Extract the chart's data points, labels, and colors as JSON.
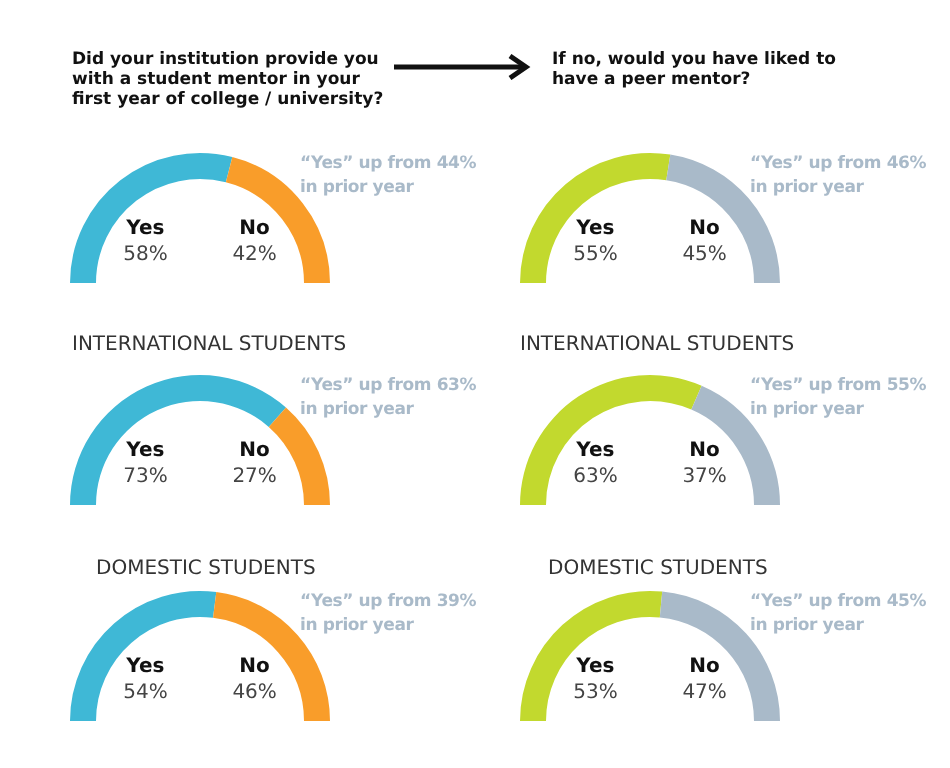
{
  "chart_data": [
    {
      "type": "donut",
      "title": "Did your institution provide you with a student mentor in your first year of college / university?",
      "categories": [
        "Yes",
        "No"
      ],
      "values": [
        58,
        42
      ],
      "value_labels": [
        "58%",
        "42%"
      ],
      "colors": [
        "#3fb8d6",
        "#f99d2a"
      ],
      "annotations": [
        "“Yes” up from 44% in prior year"
      ]
    },
    {
      "type": "donut",
      "title": "If no, would you have liked to have a peer mentor?",
      "categories": [
        "Yes",
        "No"
      ],
      "values": [
        55,
        45
      ],
      "value_labels": [
        "55%",
        "45%"
      ],
      "colors": [
        "#c2d92e",
        "#a9bac9"
      ],
      "annotations": [
        "“Yes” up from 46% in prior year"
      ]
    },
    {
      "type": "donut",
      "title": "INTERNATIONAL STUDENTS",
      "categories": [
        "Yes",
        "No"
      ],
      "values": [
        73,
        27
      ],
      "value_labels": [
        "73%",
        "27%"
      ],
      "colors": [
        "#3fb8d6",
        "#f99d2a"
      ],
      "annotations": [
        "“Yes” up from 63% in prior year"
      ]
    },
    {
      "type": "donut",
      "title": "INTERNATIONAL STUDENTS",
      "categories": [
        "Yes",
        "No"
      ],
      "values": [
        63,
        37
      ],
      "value_labels": [
        "63%",
        "37%"
      ],
      "colors": [
        "#c2d92e",
        "#a9bac9"
      ],
      "annotations": [
        "“Yes” up from 55% in prior year"
      ]
    },
    {
      "type": "donut",
      "title": "DOMESTIC STUDENTS",
      "categories": [
        "Yes",
        "No"
      ],
      "values": [
        54,
        46
      ],
      "value_labels": [
        "54%",
        "46%"
      ],
      "colors": [
        "#3fb8d6",
        "#f99d2a"
      ],
      "annotations": [
        "“Yes” up from 39% in prior year"
      ]
    },
    {
      "type": "donut",
      "title": "DOMESTIC STUDENTS",
      "categories": [
        "Yes",
        "No"
      ],
      "values": [
        53,
        47
      ],
      "value_labels": [
        "53%",
        "47%"
      ],
      "colors": [
        "#c2d92e",
        "#a9bac9"
      ],
      "annotations": [
        "“Yes” up from 45% in prior year"
      ]
    }
  ]
}
